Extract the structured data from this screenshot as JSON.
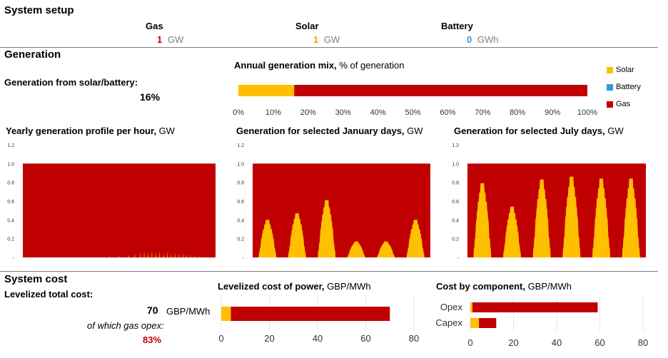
{
  "system_setup": {
    "title": "System setup",
    "gas": {
      "label": "Gas",
      "value": "1",
      "unit": "GW"
    },
    "solar": {
      "label": "Solar",
      "value": "1",
      "unit": "GW"
    },
    "battery": {
      "label": "Battery",
      "value": "0",
      "unit": "GWh"
    }
  },
  "colors": {
    "gas": "#C00000",
    "solar": "#FFC000",
    "battery": "#2E9BD6",
    "value_gas": "#C00000",
    "value_solar": "#E6A800",
    "value_battery": "#2E9BD6"
  },
  "generation": {
    "title": "Generation",
    "share_label": "Generation from solar/battery:",
    "share_value": "16%"
  },
  "system_cost": {
    "title": "System cost",
    "total_label": "Levelized total cost:",
    "total_value": "70",
    "total_unit": "GBP/MWh",
    "opex_label": "of which gas opex:",
    "opex_value": "83%"
  },
  "chart_data": [
    {
      "id": "mix",
      "type": "bar",
      "title_bold": "Annual generation mix,",
      "title_rest": " % of generation",
      "series": [
        {
          "name": "Solar",
          "values": [
            16
          ]
        },
        {
          "name": "Battery",
          "values": [
            0
          ]
        },
        {
          "name": "Gas",
          "values": [
            84
          ]
        }
      ],
      "xlim": [
        0,
        100
      ],
      "ticks": [
        "0%",
        "10%",
        "20%",
        "30%",
        "40%",
        "50%",
        "60%",
        "70%",
        "80%",
        "90%",
        "100%"
      ],
      "legend": [
        "Solar",
        "Battery",
        "Gas"
      ],
      "legend_position": "right"
    },
    {
      "id": "yearly",
      "type": "area",
      "title_bold": "Yearly generation profile per hour,",
      "title_rest": " GW",
      "ylim": [
        0,
        1.2
      ],
      "yticks": [
        "1.2",
        "1.0",
        "0.8",
        "0.6",
        "0.4",
        "0.2",
        "-"
      ],
      "total": 1.0,
      "solar_spikes": [
        [
          0.1,
          0.005
        ],
        [
          0.2,
          0.006
        ],
        [
          0.3,
          0.008
        ],
        [
          0.38,
          0.01
        ],
        [
          0.45,
          0.015
        ],
        [
          0.5,
          0.02
        ],
        [
          0.55,
          0.03
        ],
        [
          0.58,
          0.045
        ],
        [
          0.61,
          0.06
        ],
        [
          0.63,
          0.07
        ],
        [
          0.65,
          0.055
        ],
        [
          0.67,
          0.08
        ],
        [
          0.69,
          0.06
        ],
        [
          0.71,
          0.075
        ],
        [
          0.73,
          0.05
        ],
        [
          0.75,
          0.065
        ],
        [
          0.77,
          0.045
        ],
        [
          0.79,
          0.055
        ],
        [
          0.81,
          0.04
        ],
        [
          0.83,
          0.05
        ],
        [
          0.85,
          0.03
        ],
        [
          0.87,
          0.035
        ],
        [
          0.89,
          0.02
        ],
        [
          0.92,
          0.01
        ],
        [
          0.95,
          0.005
        ]
      ]
    },
    {
      "id": "january",
      "type": "area",
      "title_bold": "Generation for selected January days,",
      "title_rest": " GW",
      "ylim": [
        0,
        1.2
      ],
      "yticks": [
        "1.2",
        "1.0",
        "0.8",
        "0.6",
        "0.4",
        "0.2",
        "-"
      ],
      "total": 1.0,
      "day_peaks": [
        0.4,
        0.47,
        0.61,
        0.17,
        0.17,
        0.4
      ]
    },
    {
      "id": "july",
      "type": "area",
      "title_bold": "Generation for selected July days,",
      "title_rest": " GW",
      "ylim": [
        0,
        1.2
      ],
      "yticks": [
        "1.2",
        "1.0",
        "0.8",
        "0.6",
        "0.4",
        "0.2",
        "-"
      ],
      "total": 1.0,
      "day_peaks": [
        0.79,
        0.54,
        0.83,
        0.86,
        0.84,
        0.84
      ]
    },
    {
      "id": "lcoe",
      "type": "bar",
      "title_bold": "Levelized cost of power,",
      "title_rest": " GBP/MWh",
      "series": [
        {
          "name": "Solar",
          "values": [
            4
          ]
        },
        {
          "name": "Gas",
          "values": [
            66
          ]
        }
      ],
      "xlim": [
        0,
        80
      ],
      "ticks": [
        "0",
        "20",
        "40",
        "60",
        "80"
      ]
    },
    {
      "id": "component",
      "type": "bar",
      "title_bold": "Cost by component,",
      "title_rest": " GBP/MWh",
      "categories": [
        "Opex",
        "Capex"
      ],
      "series": [
        {
          "name": "Solar",
          "values": [
            1,
            4
          ]
        },
        {
          "name": "Gas",
          "values": [
            58,
            8
          ]
        }
      ],
      "xlim": [
        0,
        80
      ],
      "ticks": [
        "0",
        "20",
        "40",
        "60",
        "80"
      ]
    }
  ]
}
